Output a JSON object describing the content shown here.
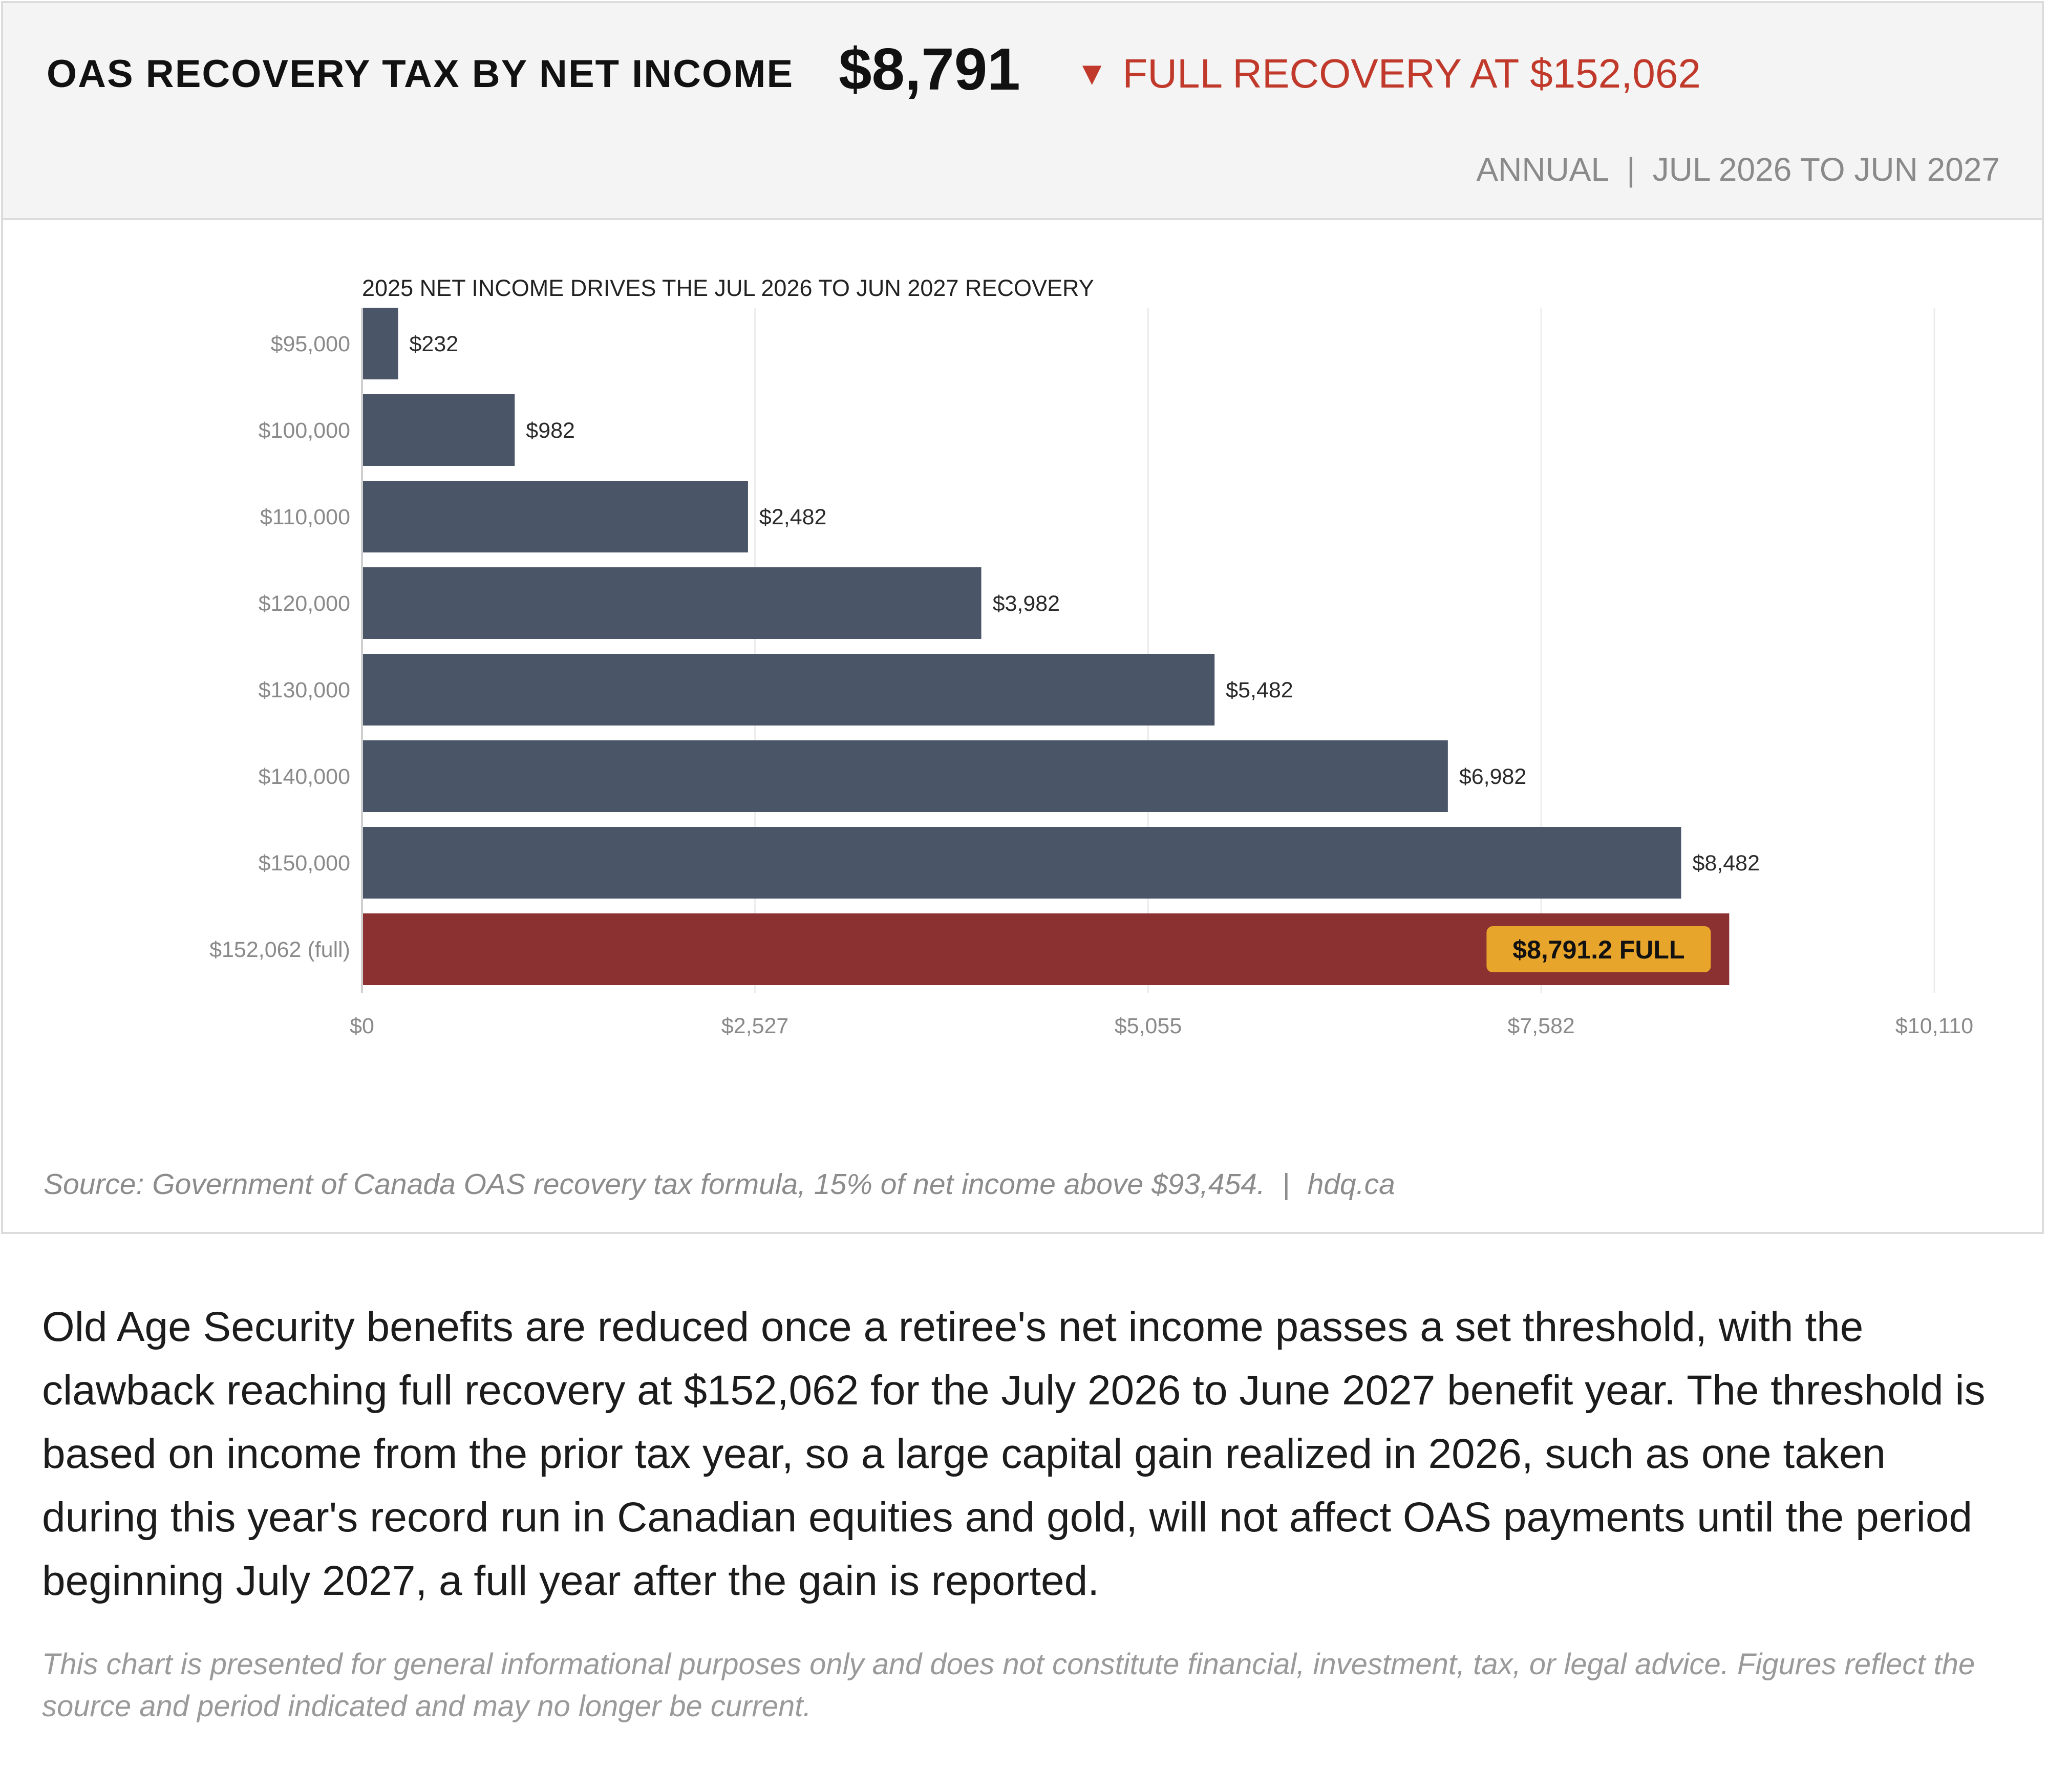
{
  "header": {
    "title": "OAS RECOVERY TAX BY NET INCOME",
    "value": "$8,791",
    "change_arrow": "▼",
    "change_text": "FULL RECOVERY AT $152,062",
    "frequency": "ANNUAL",
    "separator": "|",
    "period": "JUL 2026 TO JUN 2027"
  },
  "colors": {
    "bar": "#4a5568",
    "highlight_bar": "#8b3132",
    "badge": "#e8a52c",
    "negative": "#c0392b",
    "grid": "#ececec"
  },
  "chart_data": {
    "type": "bar",
    "orientation": "horizontal",
    "subtitle": "2025 NET INCOME DRIVES THE JUL 2026 TO JUN 2027 RECOVERY",
    "categories": [
      "$95,000",
      "$100,000",
      "$110,000",
      "$120,000",
      "$130,000",
      "$140,000",
      "$150,000",
      "$152,062 (full)"
    ],
    "values": [
      232,
      982,
      2482,
      3982,
      5482,
      6982,
      8482,
      8791.2
    ],
    "data_labels": [
      "$232",
      "$982",
      "$2,482",
      "$3,982",
      "$5,482",
      "$6,982",
      "$8,482",
      "$8,791.2 FULL"
    ],
    "highlight_index": 7,
    "xlim": [
      0,
      10110
    ],
    "x_ticks": [
      0,
      2527,
      5055,
      7582,
      10110
    ],
    "x_tick_labels": [
      "$0",
      "$2,527",
      "$5,055",
      "$7,582",
      "$10,110"
    ],
    "grid": true,
    "xlabel": "",
    "ylabel": ""
  },
  "source": {
    "text": "Source: Government of Canada OAS recovery tax formula, 15% of net income above $93,454.",
    "separator": "|",
    "site": "hdq.ca"
  },
  "body_text": "Old Age Security benefits are reduced once a retiree's net income passes a set threshold, with the clawback reaching full recovery at $152,062 for the July 2026 to June 2027 benefit year. The threshold is based on income from the prior tax year, so a large capital gain realized in 2026, such as one taken during this year's record run in Canadian equities and gold, will not affect OAS payments until the period beginning July 2027, a full year after the gain is reported.",
  "disclaimer": "This chart is presented for general informational purposes only and does not constitute financial, investment, tax, or legal advice. Figures reflect the source and period indicated and may no longer be current."
}
